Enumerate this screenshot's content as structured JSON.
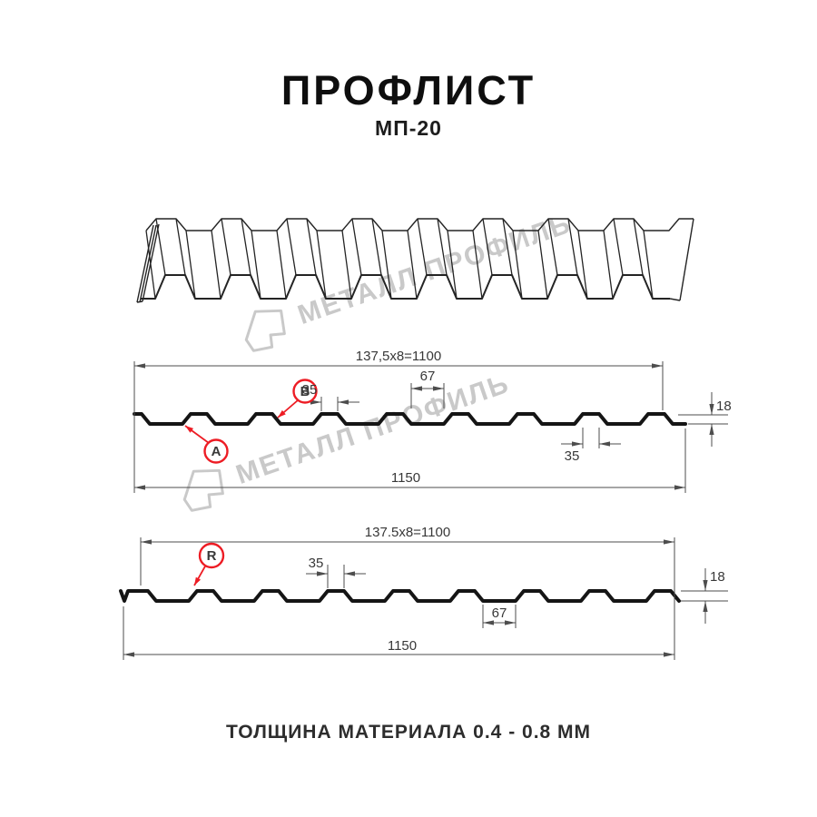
{
  "title": {
    "main": "ПРОФЛИСТ",
    "model": "МП-20"
  },
  "footer": {
    "thickness_note": "ТОЛЩИНА МАТЕРИАЛА 0.4 - 0.8 ММ"
  },
  "watermark": {
    "brand": "МЕТАЛЛ ПРОФИЛЬ"
  },
  "colors": {
    "accent_red": "#ed1c24",
    "drawing_line": "#242424",
    "profile_line": "#151515",
    "dimension_line": "#4d4d4d",
    "watermark_gray": "#c9c9c9"
  },
  "section_top": {
    "span": "137,5x8=1100",
    "rib_top_width": "35",
    "groove_width": "67",
    "profile_height": "18",
    "rib_bottom_width": "35",
    "total_width": "1150",
    "label_a": "A",
    "label_b": "B"
  },
  "section_bottom": {
    "span": "137.5x8=1100",
    "rib_top_width": "35",
    "groove_width": "67",
    "profile_height": "18",
    "total_width": "1150",
    "label_r": "R"
  }
}
